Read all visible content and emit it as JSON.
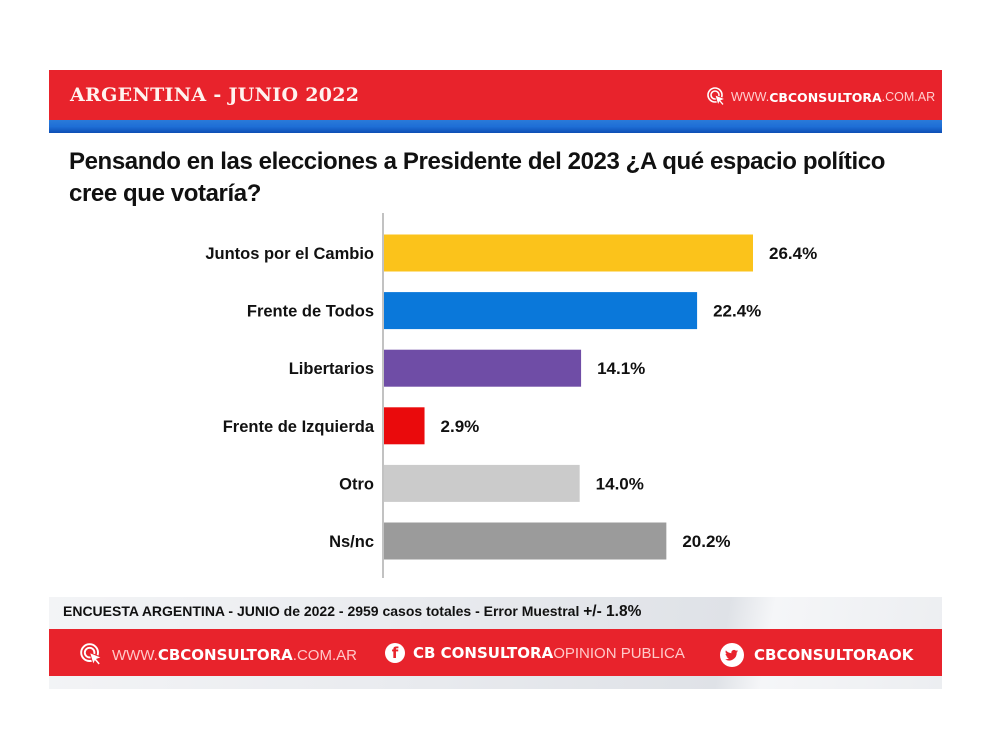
{
  "header": {
    "title": "ARGENTINA - JUNIO 2022",
    "url_prefix": "WWW.",
    "url_brand": "CBCONSULTORA",
    "url_suffix": ".COM.AR",
    "url_icon": "cursor-click-icon"
  },
  "question": "Pensando en las elecciones a Presidente del 2023 ¿A qué espacio político cree que votaría?",
  "chart_data": {
    "type": "bar",
    "orientation": "horizontal",
    "title": "Pensando en las elecciones a Presidente del 2023 ¿A qué espacio político cree que votaría?",
    "xlabel": "",
    "ylabel": "",
    "xlim": [
      0,
      30
    ],
    "grid": false,
    "legend": "none",
    "categories": [
      "Juntos por el Cambio",
      "Frente de Todos",
      "Libertarios",
      "Frente de Izquierda",
      "Otro",
      "Ns/nc"
    ],
    "values": [
      26.4,
      22.4,
      14.1,
      2.9,
      14.0,
      20.2
    ],
    "value_labels": [
      "26.4%",
      "22.4%",
      "14.1%",
      "2.9%",
      "14.0%",
      "20.2%"
    ],
    "colors": [
      "#fbc31b",
      "#0a78da",
      "#6f4da6",
      "#ea0a0c",
      "#cbcbcb",
      "#9b9b9b"
    ],
    "unit": "%"
  },
  "footer": {
    "note_main": "ENCUESTA ARGENTINA - JUNIO de 2022 -  2959 casos totales - Error Muestral ",
    "note_error": "+/- 1.8%",
    "web": {
      "prefix": "WWW.",
      "brand": "CBCONSULTORA",
      "suffix": ".COM.AR",
      "icon": "cursor-click-icon"
    },
    "facebook": {
      "icon_glyph": "f",
      "brand": "CB CONSULTORA",
      "suffix": " OPINION PUBLICA",
      "icon": "facebook-icon"
    },
    "twitter": {
      "handle": "CBCONSULTORAOK",
      "icon": "twitter-icon"
    }
  },
  "colors": {
    "brand_red": "#e8232c",
    "stripe_blue": "#1e6fd6"
  }
}
